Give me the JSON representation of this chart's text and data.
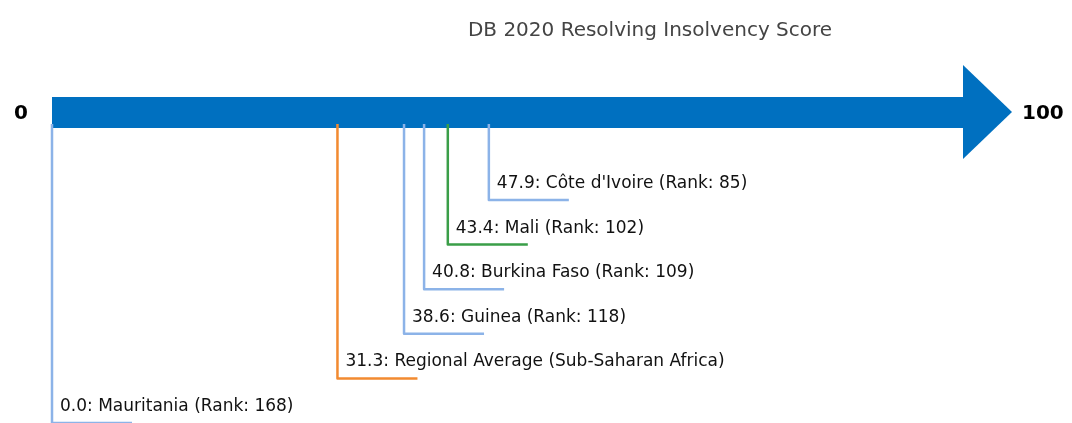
{
  "chart_data": {
    "type": "other",
    "title": "DB 2020 Resolving Insolvency Score",
    "values": [
      47.9,
      43.4,
      40.8,
      38.6,
      31.3,
      0.0
    ],
    "value_labels": [
      "47.9: Côte d'Ivoire (Rank: 85)",
      "43.4: Mali (Rank: 102)",
      "40.8: Burkina Faso (Rank: 109)",
      "38.6: Guinea (Rank: 118)",
      "31.3: Regional Average (Sub-Saharan Africa)",
      "0.0: Mauritania (Rank: 168)"
    ],
    "colors": [
      "#8cb3e8",
      "#3a9e48",
      "#8cb3e8",
      "#8cb3e8",
      "#f28a30",
      "#8cb3e8"
    ],
    "annotations": [
      "0",
      "100"
    ]
  }
}
